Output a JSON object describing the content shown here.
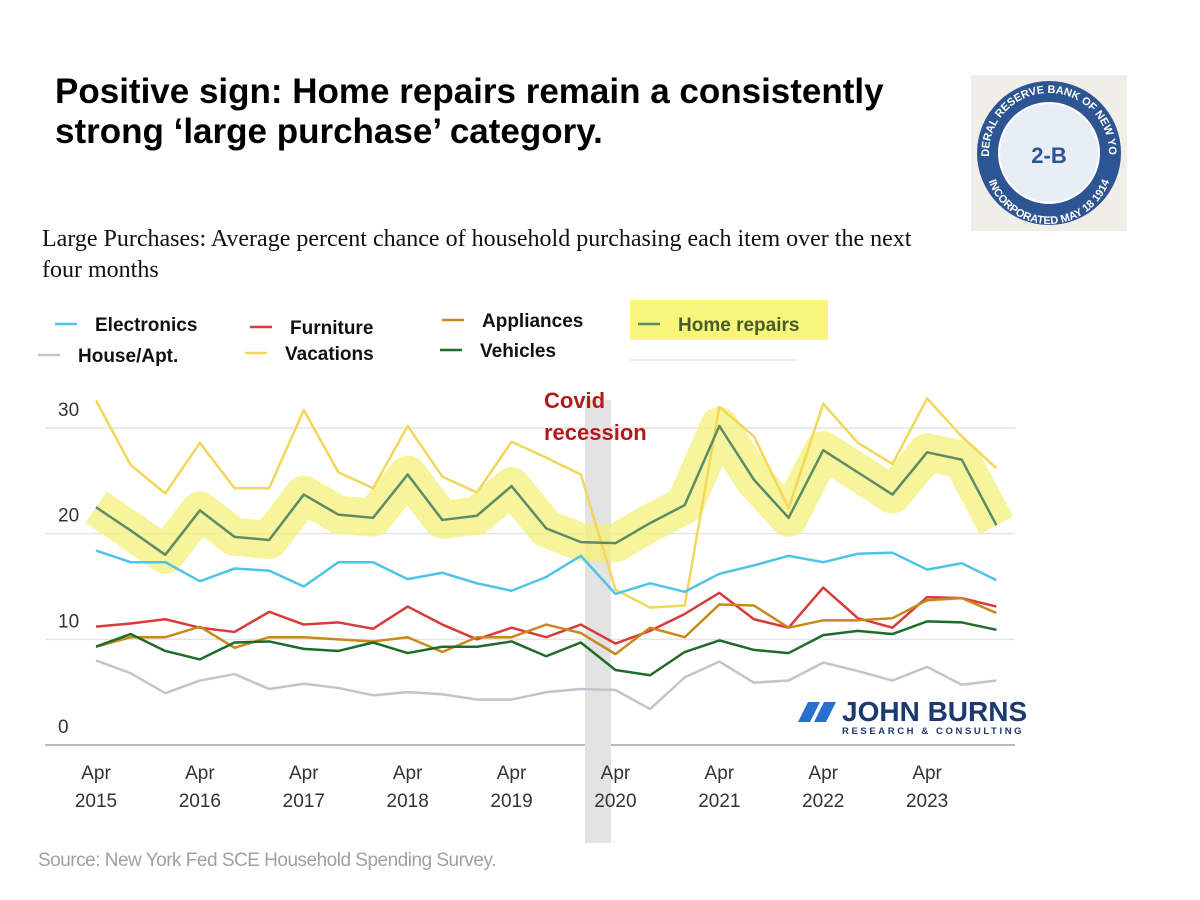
{
  "chart_data": {
    "type": "line",
    "title": "Positive sign: Home repairs remain a consistently strong ‘large purchase’ category.",
    "subtitle": "Large Purchases: Average percent chance of household purchasing each item over the next four months",
    "annotation": "Covid recession",
    "source": "Source: New York Fed SCE Household Spending Survey.",
    "logo_text": [
      "FEDERAL RESERVE BANK OF NEW YORK",
      "INCORPORATED MAY 18 1914",
      "2-B"
    ],
    "brand": [
      "JOHN BURNS",
      "RESEARCH & CONSULTING"
    ],
    "categories": [
      "Apr 2015",
      null,
      null,
      "Apr 2016",
      null,
      null,
      "Apr 2017",
      null,
      null,
      "Apr 2018",
      null,
      null,
      "Apr 2019",
      null,
      null,
      "Apr 2020",
      null,
      null,
      "Apr 2021",
      null,
      null,
      "Apr 2022",
      null,
      null,
      "Apr 2023",
      null,
      null
    ],
    "ylim": [
      0,
      30
    ],
    "yticks": [
      0,
      10,
      20,
      30
    ],
    "grid": true,
    "series": [
      {
        "name": "Electronics",
        "color": "#4ec4e6",
        "values": [
          18.4,
          17.3,
          17.3,
          15.5,
          16.7,
          16.5,
          15.0,
          17.3,
          17.3,
          15.7,
          16.3,
          15.3,
          14.6,
          15.9,
          17.9,
          14.3,
          15.3,
          14.5,
          16.2,
          17.0,
          17.9,
          17.3,
          18.1,
          18.2,
          16.6,
          17.2,
          15.6
        ]
      },
      {
        "name": "Furniture",
        "color": "#d93a3a",
        "values": [
          11.2,
          11.5,
          11.9,
          11.1,
          10.7,
          12.6,
          11.4,
          11.6,
          11.0,
          13.1,
          11.4,
          10.0,
          11.1,
          10.2,
          11.4,
          9.6,
          10.8,
          12.4,
          14.4,
          11.9,
          11.1,
          14.9,
          12.0,
          11.1,
          14.0,
          13.9,
          13.1
        ]
      },
      {
        "name": "Appliances",
        "color": "#c8891c",
        "values": [
          9.3,
          10.2,
          10.2,
          11.2,
          9.2,
          10.2,
          10.2,
          10.0,
          9.8,
          10.2,
          8.8,
          10.2,
          10.2,
          11.4,
          10.6,
          8.6,
          11.1,
          10.2,
          13.3,
          13.2,
          11.1,
          11.8,
          11.8,
          12.0,
          13.7,
          13.9,
          12.5
        ]
      },
      {
        "name": "Home repairs",
        "color": "#5b8c68",
        "highlight": "#f5f07a",
        "values": [
          22.5,
          20.3,
          18.0,
          22.2,
          19.7,
          19.4,
          23.7,
          21.8,
          21.5,
          25.6,
          21.3,
          21.7,
          24.5,
          20.5,
          19.2,
          19.1,
          21.0,
          22.7,
          30.2,
          25.1,
          21.5,
          27.9,
          25.8,
          23.7,
          27.7,
          27.0,
          20.8
        ]
      },
      {
        "name": "House/Apt.",
        "color": "#c3c3cf",
        "values": [
          8.0,
          6.8,
          4.9,
          6.1,
          6.7,
          5.3,
          5.8,
          5.4,
          4.7,
          5.0,
          4.8,
          4.3,
          4.3,
          5.0,
          5.3,
          5.2,
          3.4,
          6.4,
          7.9,
          5.9,
          6.1,
          7.8,
          7.0,
          6.1,
          7.4,
          5.7,
          6.1
        ]
      },
      {
        "name": "Vacations",
        "color": "#f2d75a",
        "values": [
          32.6,
          26.5,
          23.8,
          28.6,
          24.3,
          24.3,
          31.7,
          25.8,
          24.3,
          30.2,
          25.4,
          23.9,
          28.7,
          27.2,
          25.6,
          14.7,
          13.0,
          13.2,
          32.0,
          29.2,
          22.4,
          32.3,
          28.6,
          26.6,
          32.8,
          29.2,
          26.2
        ]
      },
      {
        "name": "Vehicles",
        "color": "#1f6b2a",
        "values": [
          9.3,
          10.5,
          8.9,
          8.1,
          9.7,
          9.8,
          9.1,
          8.9,
          9.7,
          8.7,
          9.3,
          9.3,
          9.8,
          8.4,
          9.7,
          7.1,
          6.6,
          8.8,
          9.9,
          9.0,
          8.7,
          10.4,
          10.8,
          10.5,
          11.7,
          11.6,
          10.9
        ]
      }
    ]
  }
}
